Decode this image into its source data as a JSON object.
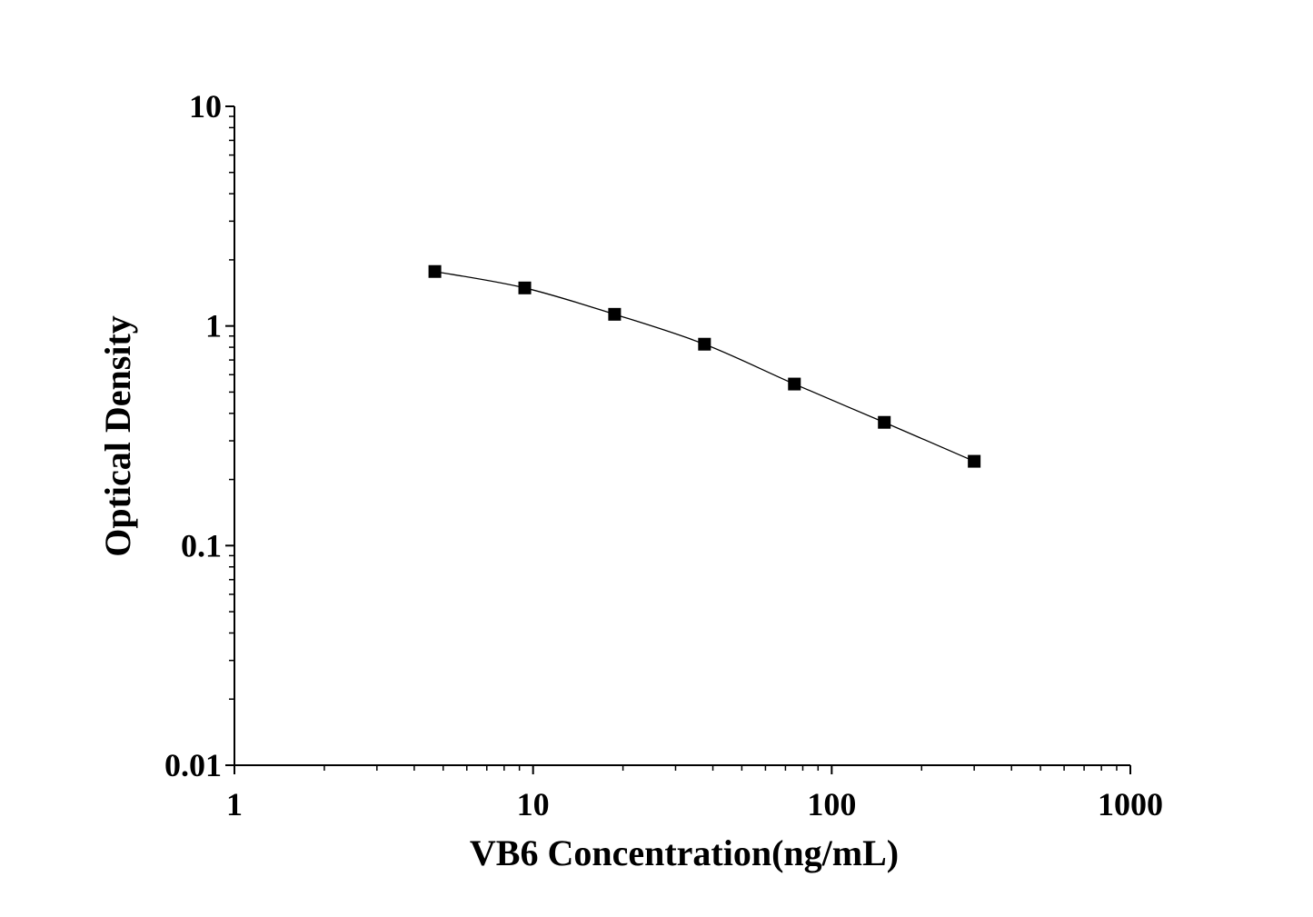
{
  "chart_data": {
    "type": "line",
    "title": "",
    "xlabel": "VB6 Concentration(ng/mL)",
    "ylabel": "Optical Density",
    "xscale": "log",
    "yscale": "log",
    "xlim": [
      1,
      1000
    ],
    "ylim": [
      0.01,
      10
    ],
    "xticks": [
      "1",
      "10",
      "100",
      "1000"
    ],
    "yticks": [
      "0.01",
      "0.1",
      "1",
      "10"
    ],
    "grid": false,
    "marker": "square",
    "line_color": "#000000",
    "marker_color": "#000000",
    "series": [
      {
        "x": [
          4.69,
          9.38,
          18.75,
          37.5,
          75,
          150,
          300
        ],
        "y": [
          1.77,
          1.49,
          1.13,
          0.826,
          0.544,
          0.364,
          0.242
        ]
      }
    ]
  }
}
